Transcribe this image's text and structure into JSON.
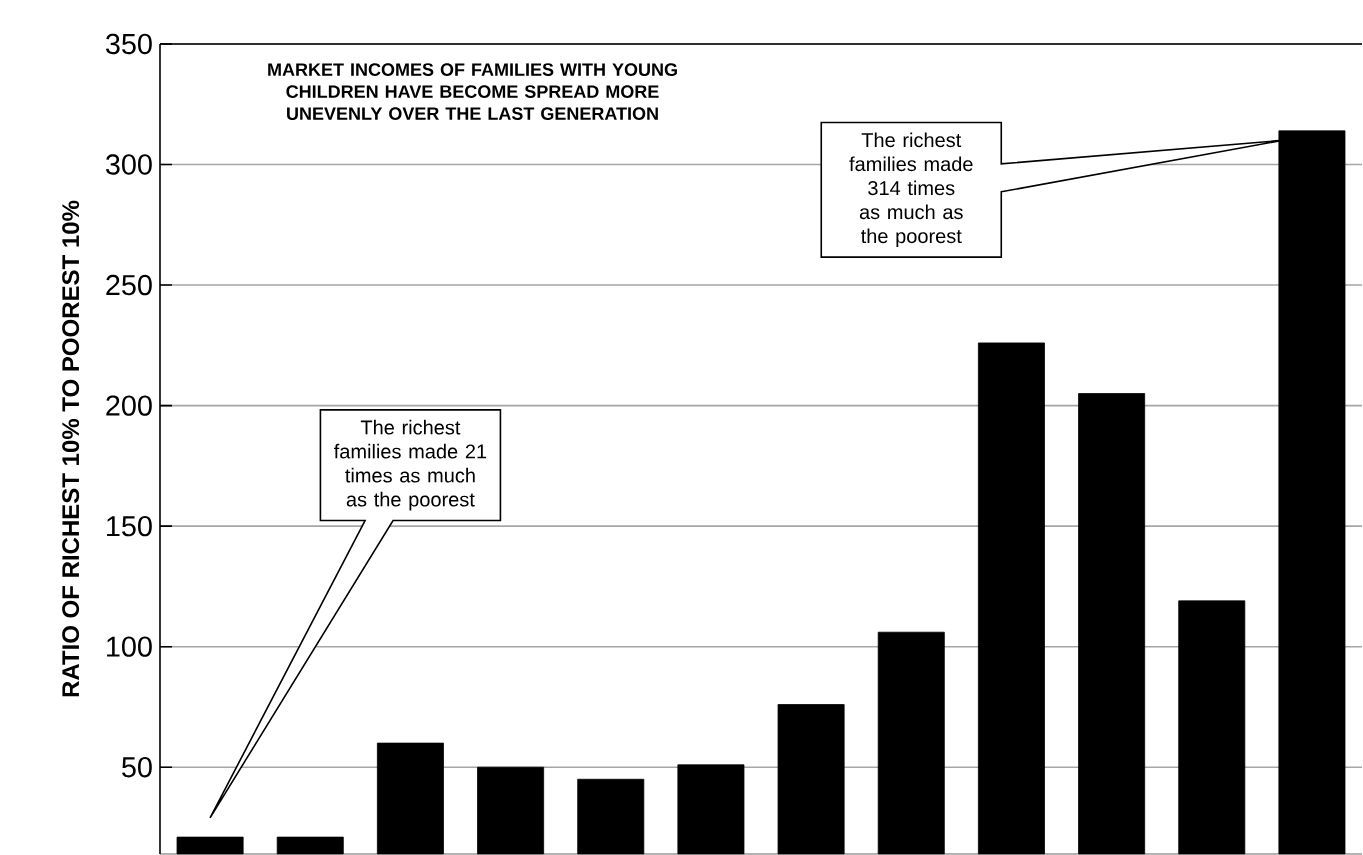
{
  "chart_data": {
    "type": "bar",
    "title": "MARKET INCOMES OF FAMILIES WITH YOUNG CHILDREN HAVE BECOME SPREAD MORE UNEVENLY OVER THE LAST GENERATION",
    "ylabel": "RATIO OF RICHEST 10% TO POOREST 10%",
    "categories": [
      null,
      null,
      null,
      null,
      null,
      null,
      null,
      null,
      null,
      null,
      null,
      null
    ],
    "values": [
      21,
      21,
      60,
      50,
      45,
      51,
      76,
      106,
      226,
      205,
      119,
      314
    ],
    "color": "#000000",
    "ylim": [
      14,
      350
    ],
    "yticks": [
      50,
      100,
      150,
      200,
      250,
      300,
      350
    ],
    "grid": "y",
    "annotations": [
      "The richest families made 21 times as much as the poorest",
      "The richest families made 314 times as much as the poorest"
    ]
  }
}
